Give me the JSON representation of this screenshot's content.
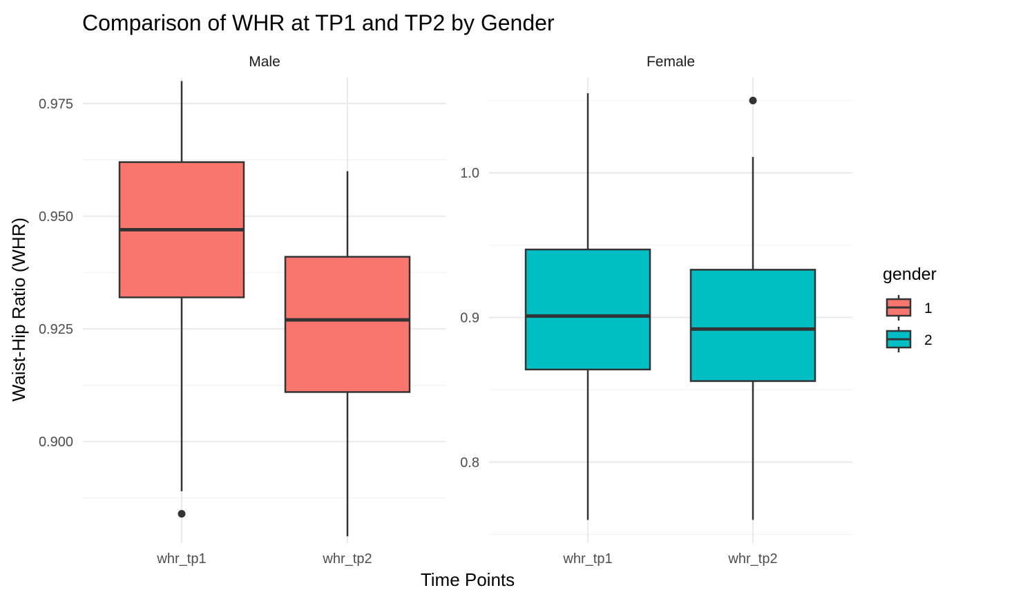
{
  "chart_data": {
    "type": "boxplot",
    "title": "Comparison of WHR at TP1 and TP2 by Gender",
    "xlabel": "Time Points",
    "ylabel": "Waist-Hip Ratio (WHR)",
    "categories": [
      "whr_tp1",
      "whr_tp2"
    ],
    "grid": true,
    "legend": {
      "title": "gender",
      "position": "right",
      "entries": [
        {
          "label": "1",
          "color": "#F8766D"
        },
        {
          "label": "2",
          "color": "#00BFC4"
        }
      ]
    },
    "facets": [
      {
        "label": "Male",
        "fill": "#F8766D",
        "ylim": [
          0.8775,
          0.9808
        ],
        "yticks": [
          0.9,
          0.925,
          0.95,
          0.975
        ],
        "ytick_labels": [
          "0.900",
          "0.925",
          "0.950",
          "0.975"
        ],
        "boxes": [
          {
            "category": "whr_tp1",
            "whisker_low": 0.889,
            "q1": 0.932,
            "median": 0.947,
            "q3": 0.962,
            "whisker_high": 0.98,
            "outliers": [
              0.884
            ]
          },
          {
            "category": "whr_tp2",
            "whisker_low": 0.879,
            "q1": 0.911,
            "median": 0.927,
            "q3": 0.941,
            "whisker_high": 0.96,
            "outliers": []
          }
        ]
      },
      {
        "label": "Female",
        "fill": "#00BFC4",
        "ylim": [
          0.744,
          1.066
        ],
        "yticks": [
          0.8,
          0.9,
          1.0
        ],
        "ytick_labels": [
          "0.8",
          "0.9",
          "1.0"
        ],
        "boxes": [
          {
            "category": "whr_tp1",
            "whisker_low": 0.76,
            "q1": 0.864,
            "median": 0.901,
            "q3": 0.947,
            "whisker_high": 1.055,
            "outliers": []
          },
          {
            "category": "whr_tp2",
            "whisker_low": 0.76,
            "q1": 0.856,
            "median": 0.892,
            "q3": 0.933,
            "whisker_high": 1.011,
            "outliers": [
              1.05
            ]
          }
        ]
      }
    ]
  }
}
